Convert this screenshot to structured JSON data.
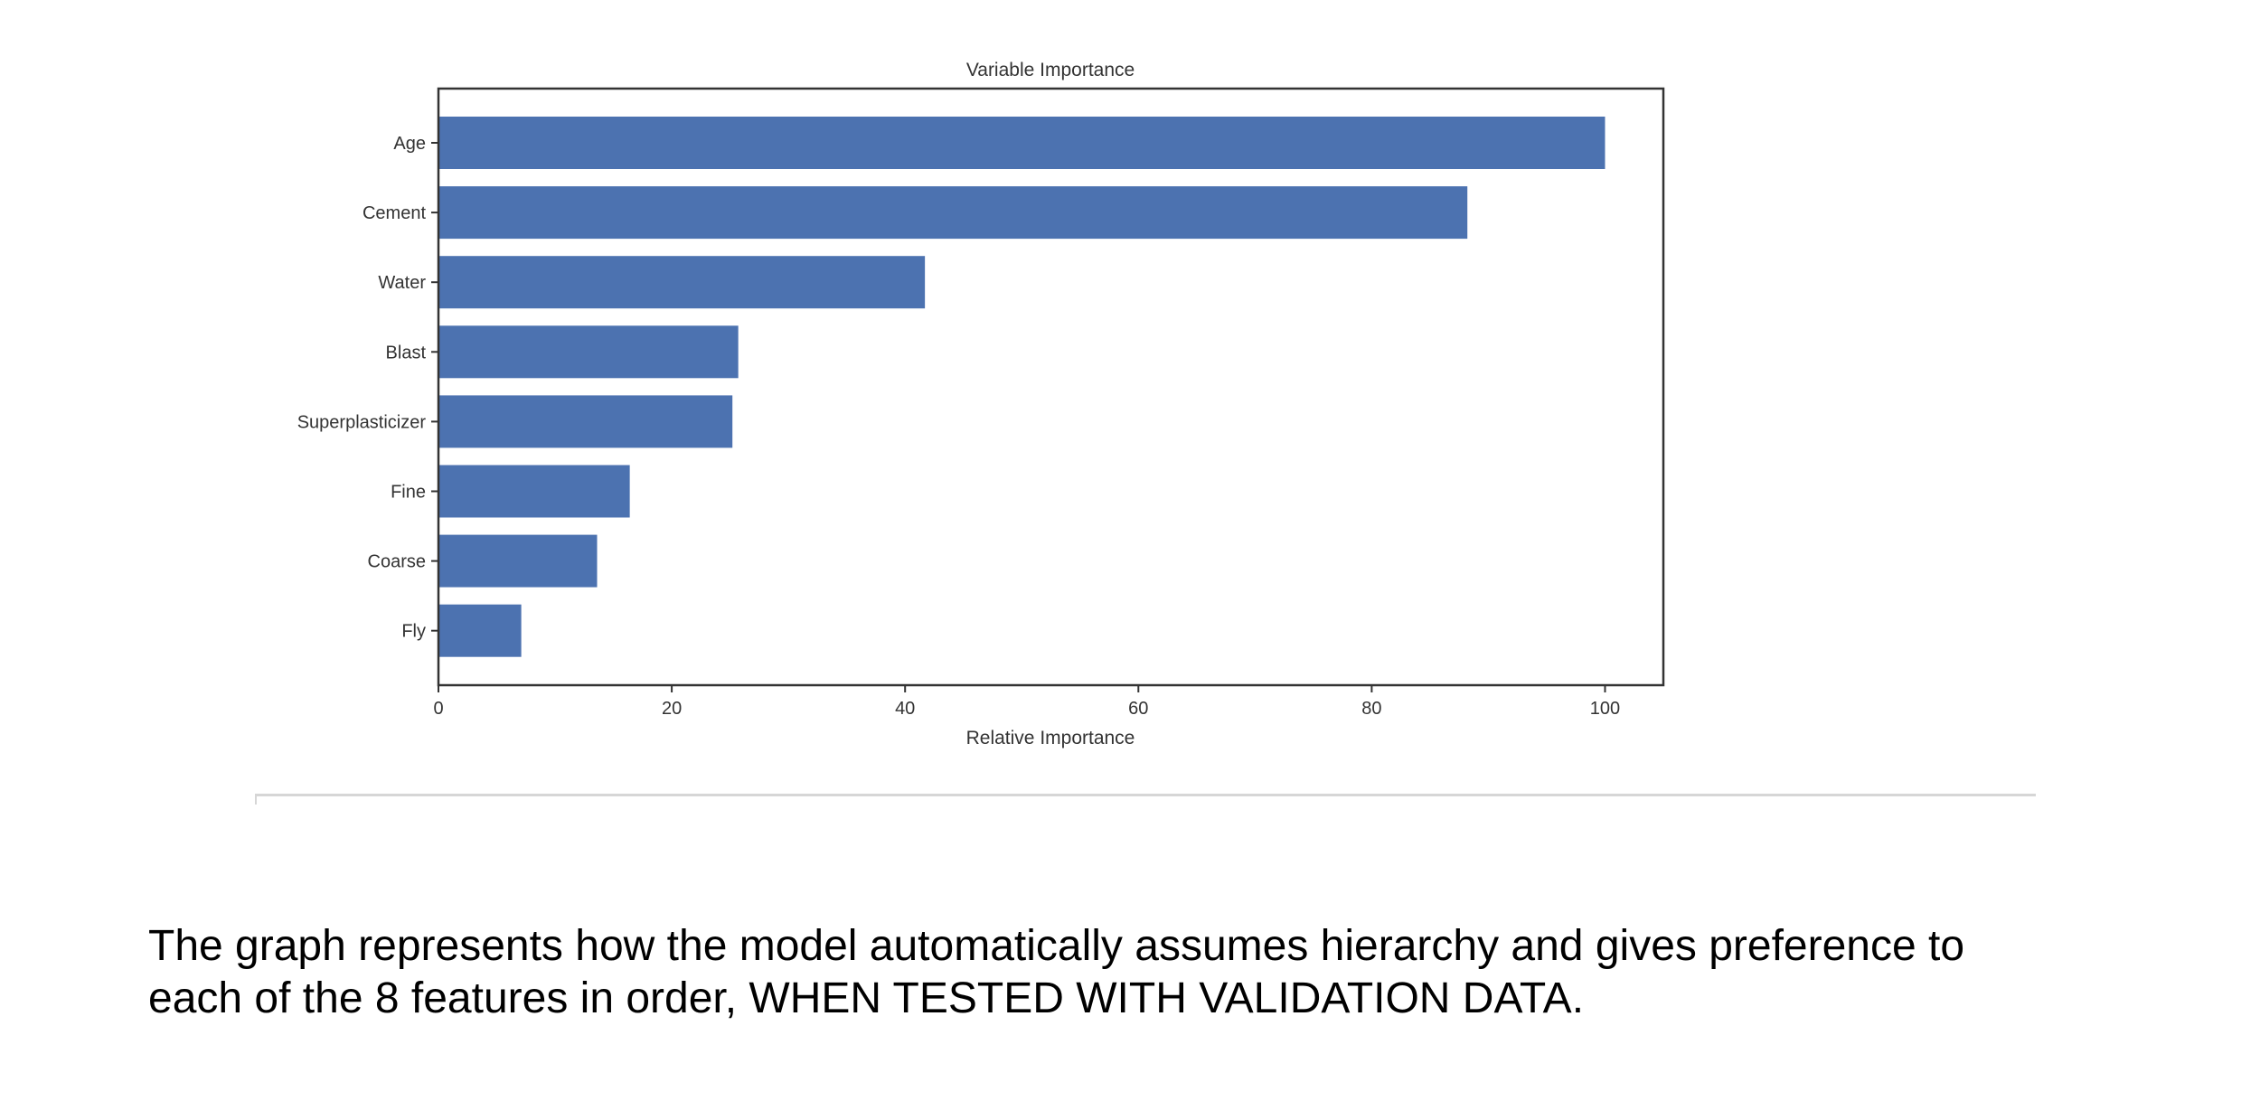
{
  "chart_data": {
    "type": "bar",
    "orientation": "horizontal",
    "title": "Variable Importance",
    "xlabel": "Relative Importance",
    "ylabel": "",
    "categories": [
      "Age",
      "Cement",
      "Water",
      "Blast",
      "Superplasticizer",
      "Fine",
      "Coarse",
      "Fly"
    ],
    "values": [
      100,
      88.2,
      41.7,
      25.7,
      25.2,
      16.4,
      13.6,
      7.1
    ],
    "xlim": [
      0,
      105
    ],
    "xticks": [
      0,
      20,
      40,
      60,
      80,
      100
    ],
    "grid": false,
    "bar_color": "#4c72b0"
  },
  "caption": {
    "line1": "The graph represents how the model automatically assumes hierarchy and gives preference to",
    "line2": "each of the 8 features in order, WHEN TESTED WITH VALIDATION DATA."
  }
}
